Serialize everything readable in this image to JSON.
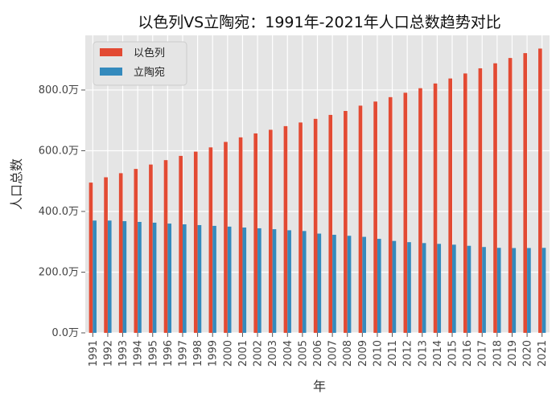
{
  "chart_data": {
    "type": "bar",
    "title": "以色列VS立陶宛：1991年-2021年人口总数趋势对比",
    "xlabel": "年",
    "ylabel": "人口总数",
    "ylim": [
      0,
      9800000
    ],
    "y_ticks": [
      0,
      2000000,
      4000000,
      6000000,
      8000000
    ],
    "y_tick_labels": [
      "0.0万",
      "200.0万",
      "400.0万",
      "600.0万",
      "800.0万"
    ],
    "grid": true,
    "legend_position": "top-left",
    "categories": [
      "1991",
      "1992",
      "1993",
      "1994",
      "1995",
      "1996",
      "1997",
      "1998",
      "1999",
      "2000",
      "2001",
      "2002",
      "2003",
      "2004",
      "2005",
      "2006",
      "2007",
      "2008",
      "2009",
      "2010",
      "2011",
      "2012",
      "2013",
      "2014",
      "2015",
      "2016",
      "2017",
      "2018",
      "2019",
      "2020",
      "2021"
    ],
    "series": [
      {
        "name": "以色列",
        "color": "#E24A33",
        "values": [
          4950000,
          5125000,
          5260000,
          5400000,
          5545000,
          5690000,
          5830000,
          5970000,
          6110000,
          6290000,
          6440000,
          6570000,
          6690000,
          6810000,
          6930000,
          7050000,
          7180000,
          7310000,
          7485000,
          7620000,
          7765000,
          7910000,
          8060000,
          8215000,
          8380000,
          8545000,
          8715000,
          8880000,
          9055000,
          9215000,
          9365000
        ]
      },
      {
        "name": "立陶宛",
        "color": "#348ABD",
        "values": [
          3700000,
          3700000,
          3680000,
          3655000,
          3630000,
          3600000,
          3575000,
          3550000,
          3525000,
          3500000,
          3470000,
          3445000,
          3415000,
          3380000,
          3355000,
          3270000,
          3231000,
          3198000,
          3163000,
          3097000,
          3028000,
          2988000,
          2958000,
          2932000,
          2905000,
          2868000,
          2828000,
          2801000,
          2794000,
          2795000,
          2800000
        ]
      }
    ]
  }
}
